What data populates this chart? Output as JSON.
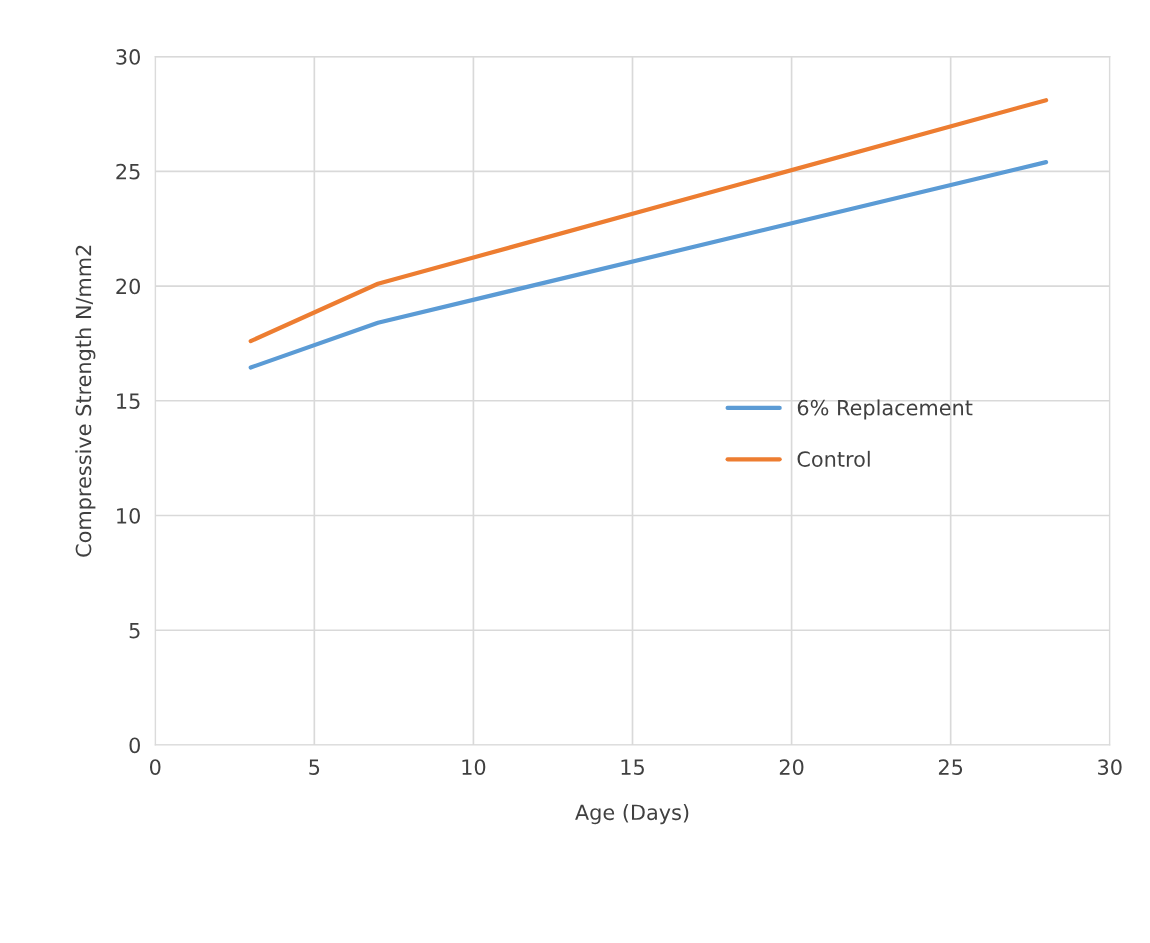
{
  "chart_data": {
    "type": "line",
    "xlabel": "Age (Days)",
    "ylabel": "Compressive Strength N/mm2",
    "x": [
      3,
      7,
      28
    ],
    "series": [
      {
        "name": "6% Replacement",
        "color": "#5b9bd5",
        "values": [
          16.45,
          18.4,
          25.4
        ]
      },
      {
        "name": "Control",
        "color": "#ed7d31",
        "values": [
          17.6,
          20.1,
          28.1
        ]
      }
    ],
    "xlim": [
      0,
      30
    ],
    "xticks": [
      0,
      5,
      10,
      15,
      20,
      25,
      30
    ],
    "ylim": [
      0,
      30
    ],
    "yticks": [
      0,
      5,
      10,
      15,
      20,
      25,
      30
    ],
    "grid": true,
    "legend": "right",
    "marker": "none",
    "line_style": "solid"
  }
}
